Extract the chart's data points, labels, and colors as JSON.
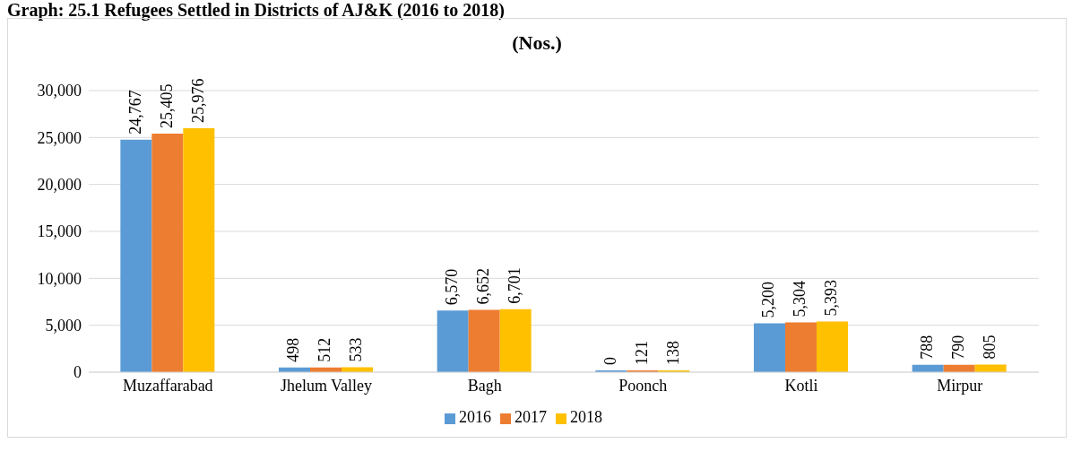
{
  "chart_data": {
    "type": "bar",
    "title": "Graph: 25.1 Refugees Settled in Districts of AJ&K (2016 to 2018)",
    "subtitle": "(Nos.)",
    "categories": [
      "Muzaffarabad",
      "Jhelum Valley",
      "Bagh",
      "Poonch",
      "Kotli",
      "Mirpur"
    ],
    "series": [
      {
        "name": "2016",
        "color": "#5b9bd5",
        "values": [
          24767,
          498,
          6570,
          0,
          5200,
          788
        ],
        "value_labels": [
          "24,767",
          "498",
          "6,570",
          "0",
          "5,200",
          "788"
        ]
      },
      {
        "name": "2017",
        "color": "#ed7d31",
        "values": [
          25405,
          512,
          6652,
          121,
          5304,
          790
        ],
        "value_labels": [
          "25,405",
          "512",
          "6,652",
          "121",
          "5,304",
          "790"
        ]
      },
      {
        "name": "2018",
        "color": "#ffc000",
        "values": [
          25976,
          533,
          6701,
          138,
          5393,
          805
        ],
        "value_labels": [
          "25,976",
          "533",
          "6,701",
          "138",
          "5,393",
          "805"
        ]
      }
    ],
    "ylim": [
      0,
      30000
    ],
    "yticks": [
      0,
      {
        "value": 5000,
        "label": "5,000"
      },
      {
        "value": 10000,
        "label": "10,000"
      },
      {
        "value": 15000,
        "label": "15,000"
      },
      {
        "value": 20000,
        "label": "20,000"
      },
      {
        "value": 25000,
        "label": "25,000"
      },
      {
        "value": 30000,
        "label": "30,000"
      }
    ],
    "grid": "y",
    "legend": "bottom"
  }
}
